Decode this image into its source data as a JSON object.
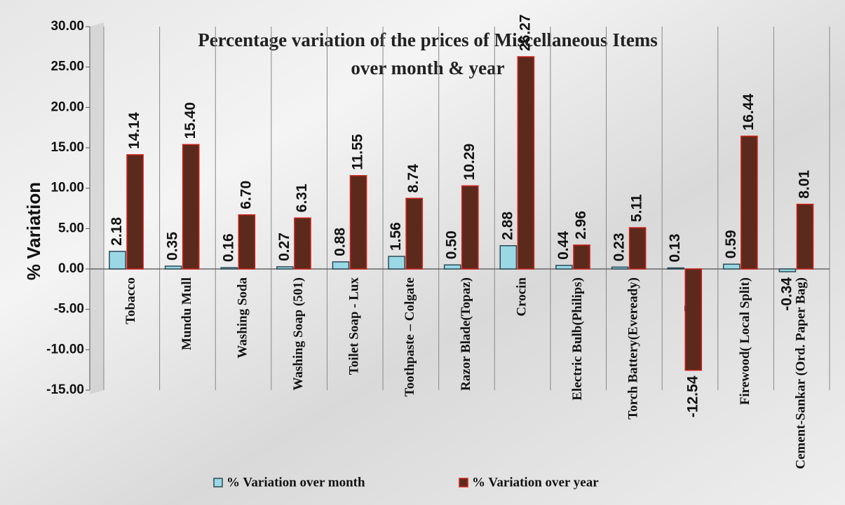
{
  "chart_data": {
    "type": "bar",
    "title": [
      "Percentage variation of the prices of Miscellaneous Items",
      "over month & year"
    ],
    "y_label": "% Variation",
    "categories": [
      "Tobacco",
      "Mundu Mull",
      "Washing Soda",
      "Washing Soap (501)",
      "Toilet Soap - Lux",
      "Toothpaste – Colgate",
      "Razor Blade(Topaz)",
      "Crocin",
      "Electric Bulb(Philips)",
      "Torch Battery(Eveready)",
      "Paper",
      "Firewood( Local Split)",
      "Cement-Sankar (Ord. Paper Bag)"
    ],
    "series": [
      {
        "name": "% Variation over month",
        "color": "#9ad8e6",
        "edge": "#2b4a55",
        "values": [
          2.18,
          0.35,
          0.16,
          0.27,
          0.88,
          1.56,
          0.5,
          2.88,
          0.44,
          0.23,
          0.13,
          0.59,
          -0.34
        ],
        "value_labels": [
          "2.18",
          "0.35",
          "0.16",
          "0.27",
          "0.88",
          "1.56",
          "0.50",
          "2.88",
          "0.44",
          "0.23",
          "0.13",
          "0.59",
          "-0.34"
        ]
      },
      {
        "name": "% Variation over year",
        "color": "#5b2a1c",
        "edge": "#d0201a",
        "values": [
          14.14,
          15.4,
          6.7,
          6.31,
          11.55,
          8.74,
          10.29,
          26.27,
          2.96,
          5.11,
          -12.54,
          16.44,
          8.01
        ],
        "value_labels": [
          "14.14",
          "15.40",
          "6.70",
          "6.31",
          "11.55",
          "8.74",
          "10.29",
          "26.27",
          "2.96",
          "5.11",
          "-12.54",
          "16.44",
          "8.01"
        ]
      }
    ],
    "ylim": [
      -15,
      30
    ],
    "yticks": [
      {
        "value": -15,
        "label": "-15.00"
      },
      {
        "value": -10,
        "label": "-10.00"
      },
      {
        "value": -5,
        "label": "-5.00"
      },
      {
        "value": 0,
        "label": "0.00"
      },
      {
        "value": 5,
        "label": "5.00"
      },
      {
        "value": 10,
        "label": "10.00"
      },
      {
        "value": 15,
        "label": "15.00"
      },
      {
        "value": 20,
        "label": "20.00"
      },
      {
        "value": 25,
        "label": "25.00"
      },
      {
        "value": 30,
        "label": "30.00"
      }
    ],
    "grid": false
  }
}
